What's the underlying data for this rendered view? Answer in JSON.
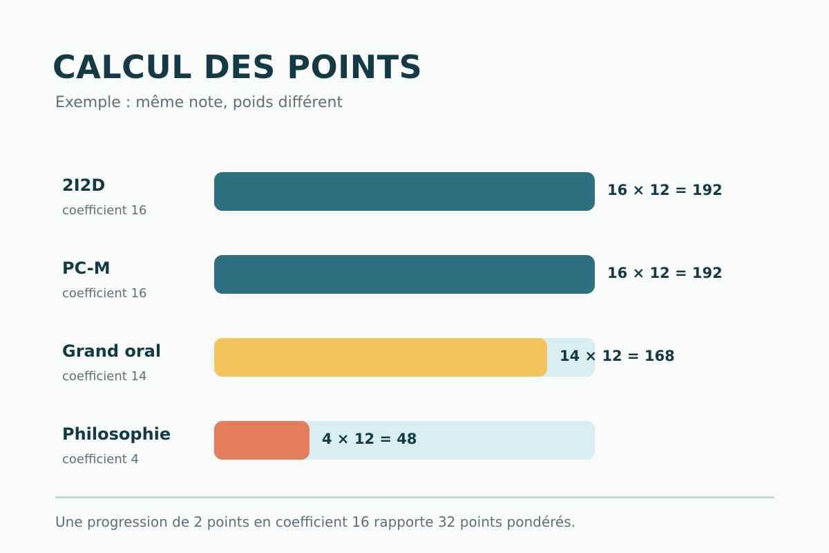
{
  "title": "CALCUL DES POINTS",
  "subtitle": "Exemple : même note, poids différent",
  "footer": "Une progression de 2 points en coefficient 16 rapporte 32 points pondérés.",
  "chart_data": {
    "type": "bar",
    "orientation": "horizontal",
    "xlim": [
      0,
      192
    ],
    "categories": [
      "2I2D",
      "PC-M",
      "Grand oral",
      "Philosophie"
    ],
    "coefficient_labels": [
      "coefficient 16",
      "coefficient 16",
      "coefficient 14",
      "coefficient 4"
    ],
    "coefficients": [
      16,
      16,
      14,
      4
    ],
    "note": 12,
    "values": [
      192,
      192,
      168,
      48
    ],
    "value_labels": [
      "16 × 12 = 192",
      "16 × 12 = 192",
      "14 × 12 = 168",
      "4 × 12 = 48"
    ],
    "colors": [
      "#2e6f80",
      "#2e6f80",
      "#f2c55c",
      "#e47c5e"
    ],
    "track_color": "#d9eef1"
  }
}
